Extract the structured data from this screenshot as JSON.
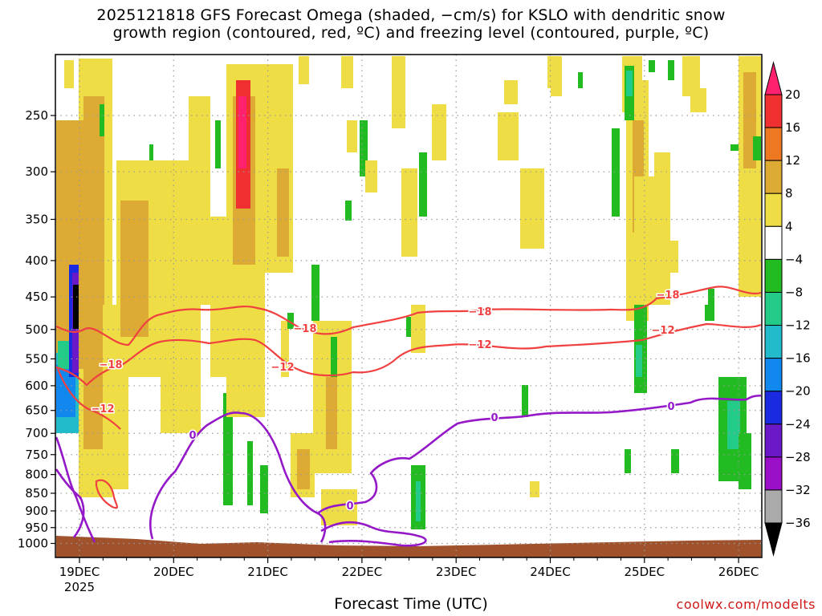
{
  "chart_data": {
    "type": "heatmap",
    "title": [
      "2025121818 GFS Forecast Omega (shaded, −cm/s) for KSLO with dendritic snow",
      "growth region (contoured, red, ºC) and freezing level (contoured, purple, ºC)"
    ],
    "xlabel": "Forecast Time (UTC)",
    "ylabel": "",
    "credit": "coolwx.com/modelts",
    "x_ticks": [
      "19DEC",
      "20DEC",
      "21DEC",
      "22DEC",
      "23DEC",
      "24DEC",
      "25DEC",
      "26DEC"
    ],
    "x_sublabel": "2025",
    "y_ticks": [
      250,
      300,
      350,
      400,
      450,
      500,
      550,
      600,
      650,
      700,
      750,
      800,
      850,
      900,
      950,
      1000
    ],
    "y_range_hpa": [
      1000,
      200
    ],
    "grid": true,
    "colorbar": {
      "labels": [
        "20",
        "16",
        "12",
        "8",
        "4",
        "−4",
        "−8",
        "−12",
        "−16",
        "−20",
        "−24",
        "−28",
        "−32",
        "−36"
      ],
      "colors": [
        "#ff2070",
        "#f03030",
        "#ee7722",
        "#ddaa33",
        "#eedd44",
        "#ffffff",
        "#22bb22",
        "#22cc88",
        "#22bbcc",
        "#1188ee",
        "#1a2ae0",
        "#6a18c8",
        "#9a10c8",
        "#aaaaaa",
        "#000000"
      ]
    },
    "contour_labels": {
      "dgz": [
        "−18",
        "−18",
        "−18",
        "−18",
        "−12",
        "−12",
        "−12",
        "−12"
      ],
      "freezing": [
        "0",
        "0",
        "0",
        "0"
      ]
    },
    "colors": {
      "dgz": "#f04040",
      "freezing": "#9418c8",
      "ground": "#a0522d",
      "grid": "#9a9a9a"
    }
  }
}
